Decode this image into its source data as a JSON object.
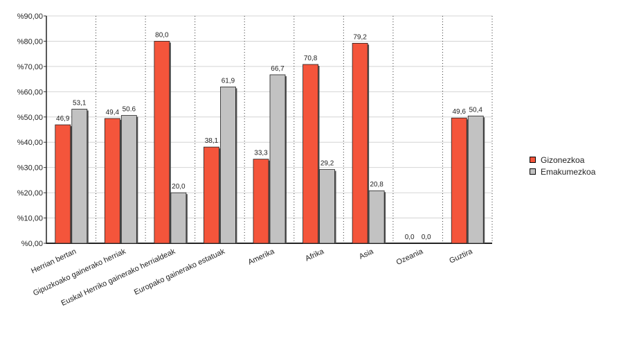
{
  "chart_data": {
    "type": "bar",
    "title": "",
    "xlabel": "",
    "ylabel": "",
    "ylim": [
      0,
      90
    ],
    "yticks": [
      0,
      10,
      20,
      30,
      40,
      50,
      60,
      70,
      80,
      90
    ],
    "ytick_labels": [
      "%0,00",
      "%10,00",
      "%20,00",
      "%30,00",
      "%40,00",
      "%50,00",
      "%60,00",
      "%70,00",
      "%80,00",
      "%90,00"
    ],
    "grid": true,
    "legend_position": "right",
    "categories": [
      "Herrian bertan",
      "Gipuzkoako gainerako herriak",
      "Euskal Herriko gainerako herrialdeak",
      "Europako gainerako estatuak",
      "Amerika",
      "Afrika",
      "Asia",
      "Ozeania",
      "Guztira"
    ],
    "series": [
      {
        "name": "Gizonezkoa",
        "color": "#f4553b",
        "values": [
          46.9,
          49.4,
          80.0,
          38.1,
          33.3,
          70.8,
          79.2,
          0.0,
          49.6
        ],
        "labels": [
          "46,9",
          "49,4",
          "80,0",
          "38,1",
          "33,3",
          "70,8",
          "79,2",
          "0,0",
          "49,6"
        ]
      },
      {
        "name": "Emakumezkoa",
        "color": "#c2c2c2",
        "values": [
          53.1,
          50.6,
          20.0,
          61.9,
          66.7,
          29.2,
          20.8,
          0.0,
          50.4
        ],
        "labels": [
          "53,1",
          "50.6",
          "20,0",
          "61,9",
          "66,7",
          "29,2",
          "20,8",
          "0,0",
          "50,4"
        ]
      }
    ]
  }
}
